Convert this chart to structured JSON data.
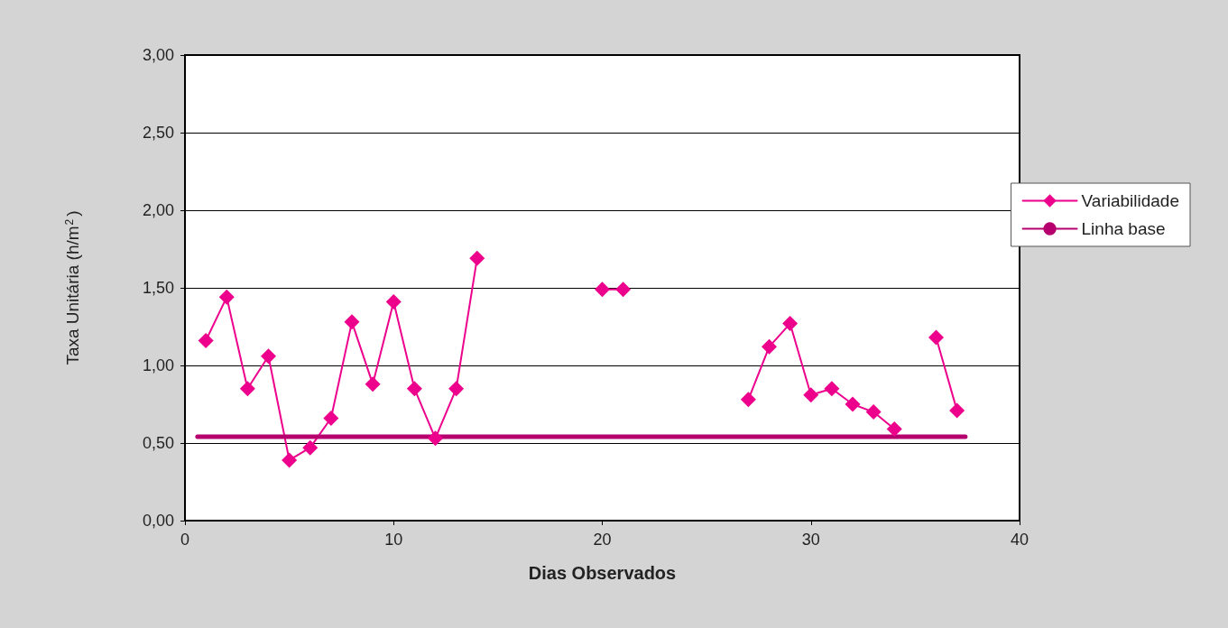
{
  "chart_data": {
    "type": "line",
    "xlabel": "Dias Observados",
    "ylabel": "Taxa Unitária (h/m$^{2}$)",
    "x": [
      1,
      2,
      3,
      4,
      5,
      6,
      7,
      8,
      9,
      10,
      11,
      12,
      13,
      14,
      15,
      16,
      17,
      18,
      19,
      20,
      21,
      22,
      23,
      24,
      25,
      26,
      27,
      28,
      29,
      30,
      31,
      32,
      33,
      34,
      35,
      36,
      37
    ],
    "series": [
      {
        "name": "Variabilidade",
        "color": "#ec008c",
        "marker": "diamond",
        "values": [
          1.16,
          1.44,
          0.85,
          1.06,
          0.39,
          0.47,
          0.66,
          1.28,
          0.88,
          1.41,
          0.85,
          0.53,
          0.85,
          1.69,
          null,
          null,
          null,
          null,
          null,
          1.49,
          1.49,
          null,
          null,
          null,
          null,
          null,
          0.78,
          1.12,
          1.27,
          0.81,
          0.85,
          0.75,
          0.7,
          0.59,
          null,
          1.18,
          0.71
        ]
      },
      {
        "name": "Linha base",
        "color": "#b5006e",
        "marker": "none",
        "x": [
          0.6,
          37.4
        ],
        "values": [
          0.54,
          0.54
        ]
      }
    ],
    "xlim": [
      0,
      40
    ],
    "xticks": [
      0,
      10,
      20,
      30,
      40
    ],
    "ylim": [
      0,
      3
    ],
    "yticks": [
      {
        "value": 0,
        "label": "0,00"
      },
      {
        "value": 0.5,
        "label": "0,50"
      },
      {
        "value": 1,
        "label": "1,00"
      },
      {
        "value": 1.5,
        "label": "1,50"
      },
      {
        "value": 2,
        "label": "2,00"
      },
      {
        "value": 2.5,
        "label": "2,50"
      },
      {
        "value": 3,
        "label": "3,00"
      }
    ],
    "grid": "y",
    "legend": "right",
    "line_style": "solid"
  }
}
